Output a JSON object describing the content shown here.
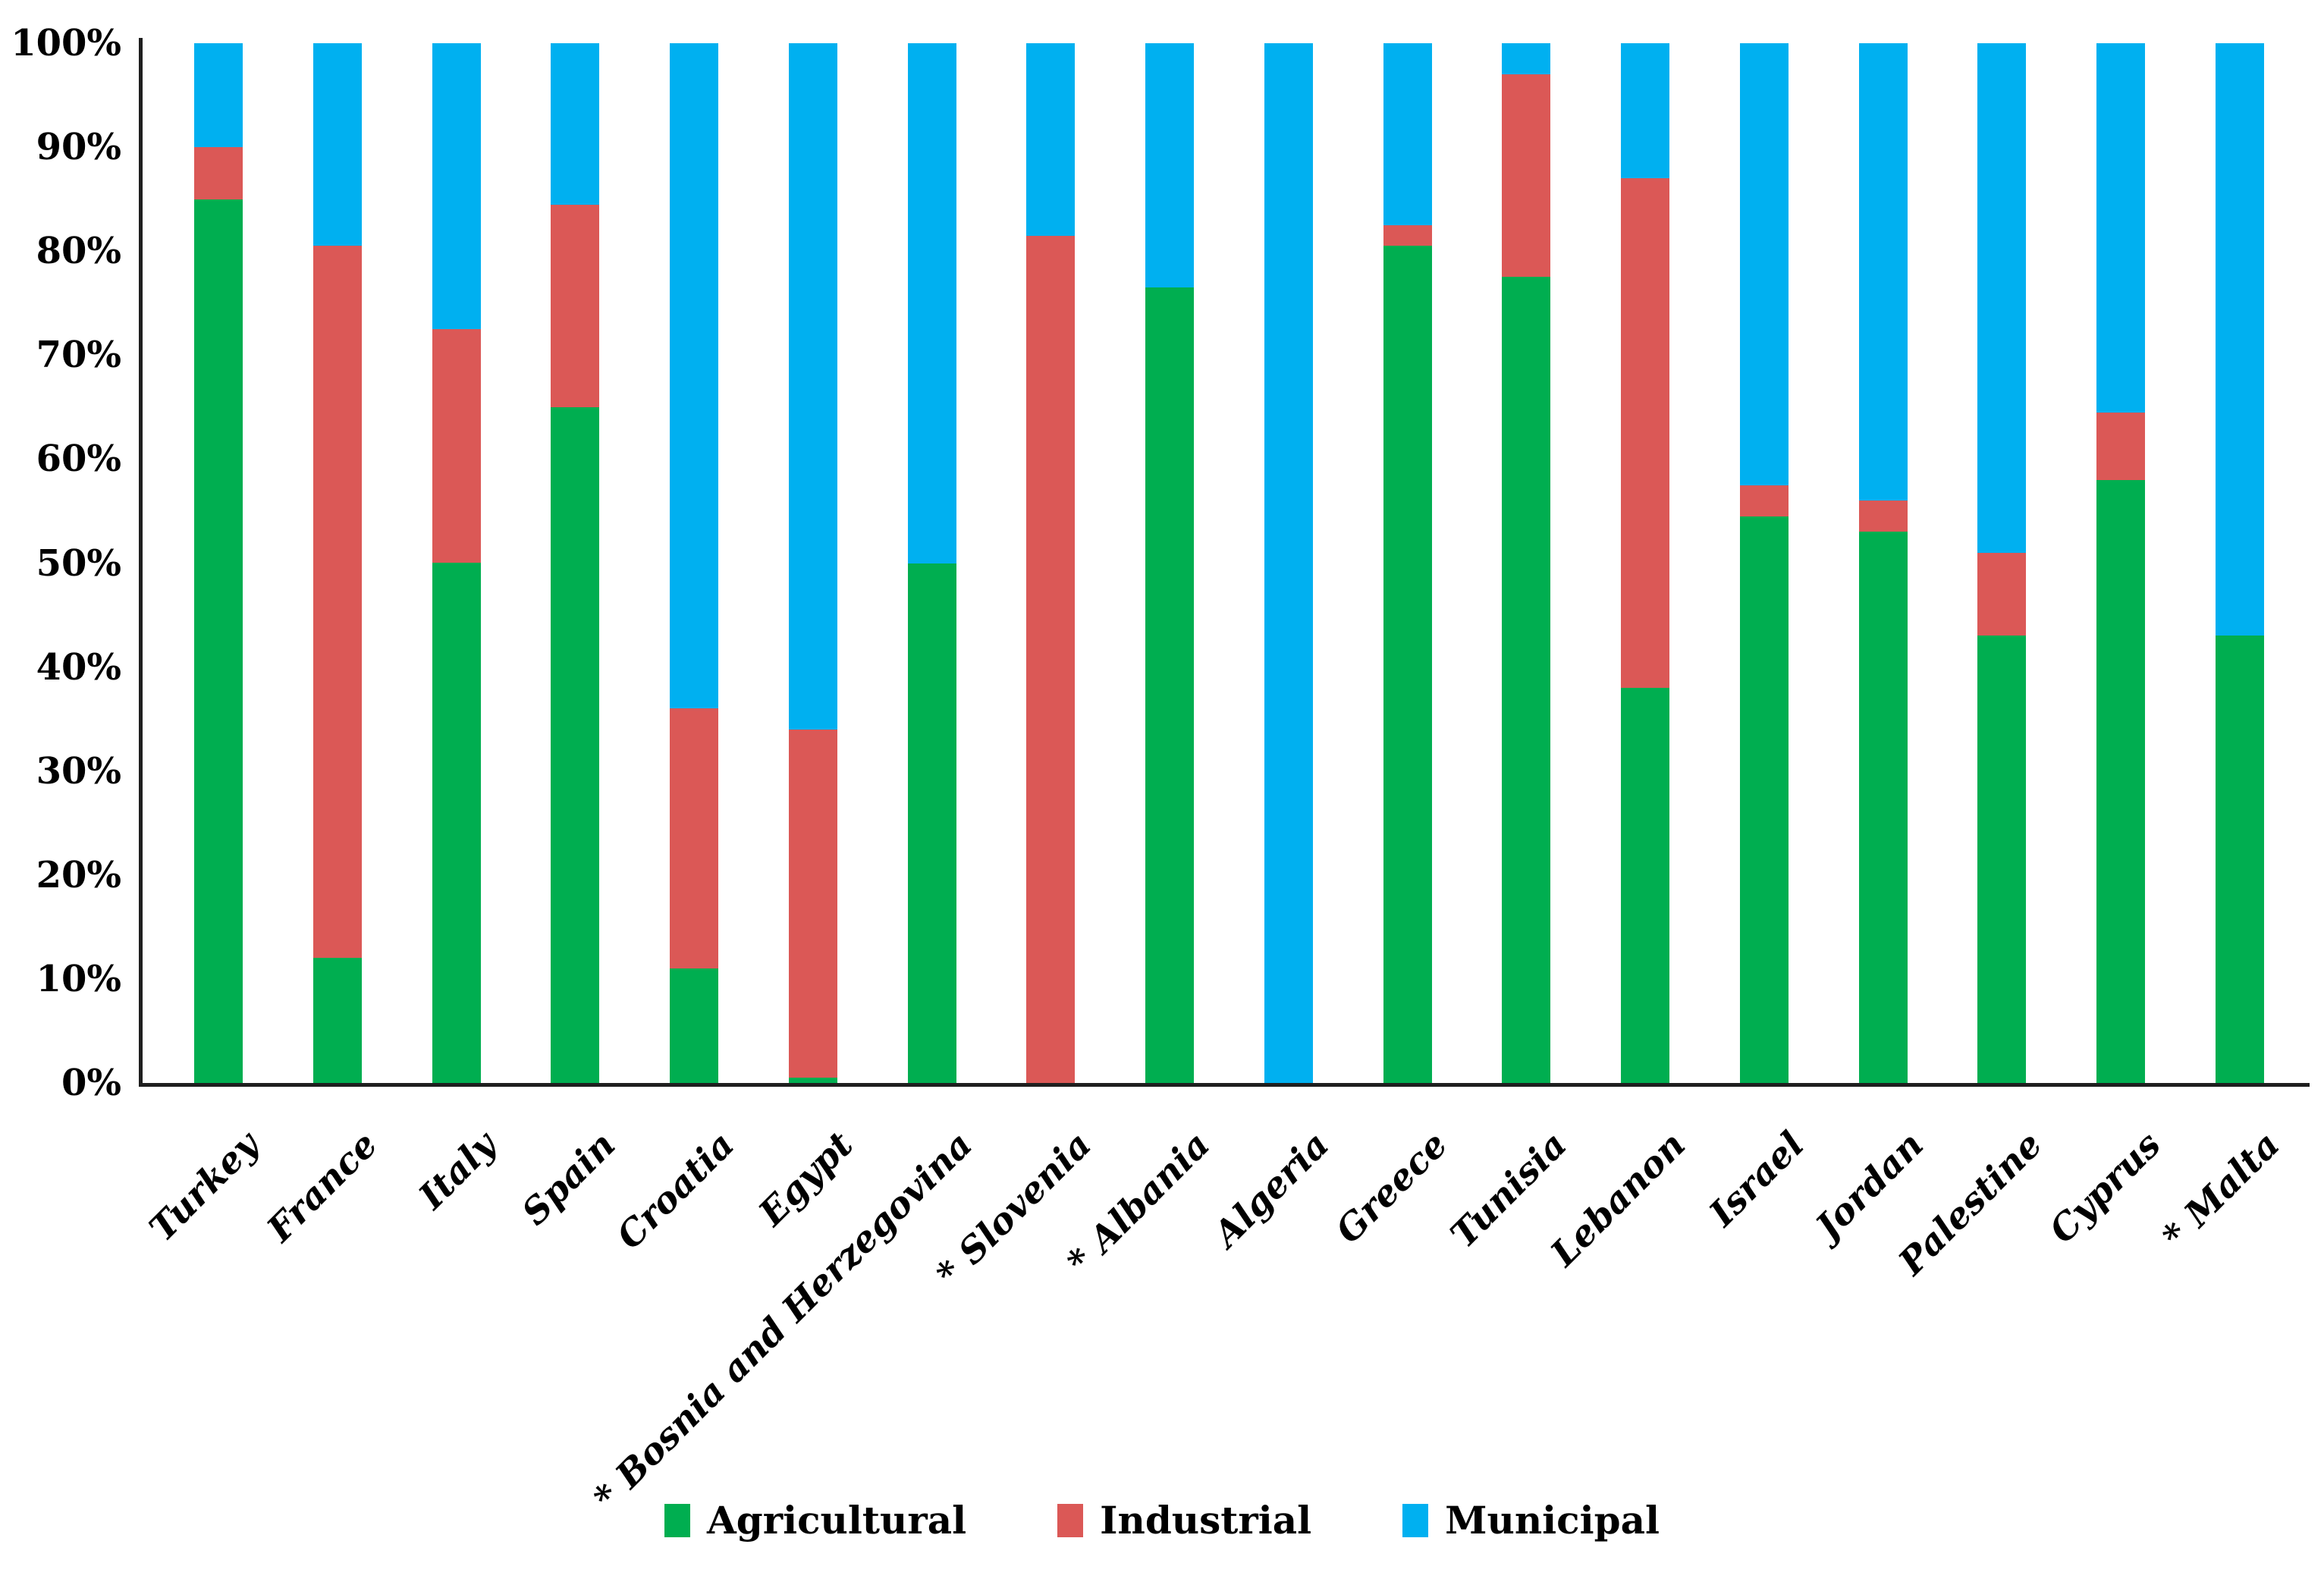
{
  "chart_data": {
    "type": "bar",
    "variant": "stacked-100-percent",
    "title": "",
    "xlabel": "",
    "ylabel": "",
    "grid": false,
    "categories": [
      "Turkey",
      "France",
      "Italy",
      "Spain",
      "Croatia",
      "Egypt",
      "* Bosnia and Herzegovina",
      "* Slovenia",
      "* Albania",
      "Algeria",
      "Greece",
      "Tunisia",
      "Lebanon",
      "Israel",
      "Jordan",
      "Palestine",
      "Cyprus",
      "* Malta"
    ],
    "series": [
      {
        "name": "Agricultural",
        "color": "#00AE50",
        "values": [
          85,
          12,
          50,
          65,
          11,
          0.5,
          50,
          0,
          76.5,
          0,
          80.5,
          77.5,
          38,
          54.5,
          53,
          43,
          58,
          43
        ]
      },
      {
        "name": "Industrial",
        "color": "#DB5856",
        "values": [
          5,
          68.5,
          22.5,
          19.5,
          25,
          33.5,
          0,
          81.5,
          0,
          0,
          2,
          19.5,
          49,
          3,
          3,
          8,
          6.5,
          0
        ]
      },
      {
        "name": "Municipal",
        "color": "#00B0F0",
        "values": [
          10,
          19.5,
          27.5,
          15.5,
          64,
          66,
          50,
          18.5,
          23.5,
          100,
          17.5,
          3,
          13,
          42.5,
          44,
          49,
          35.5,
          57
        ]
      }
    ],
    "y_axis": {
      "min": 0,
      "max": 100,
      "step": 10,
      "ticks": [
        "100%",
        "90%",
        "80%",
        "70%",
        "60%",
        "50%",
        "40%",
        "30%",
        "20%",
        "10%",
        "0%"
      ]
    },
    "legend": {
      "position": "bottom",
      "items": [
        "Agricultural",
        "Industrial",
        "Municipal"
      ]
    },
    "colors": {
      "agricultural": "#00AE50",
      "industrial": "#DB5856",
      "municipal": "#00B0F0",
      "axis": "#1f1f1f",
      "text": "#000000",
      "background": "#ffffff"
    }
  }
}
